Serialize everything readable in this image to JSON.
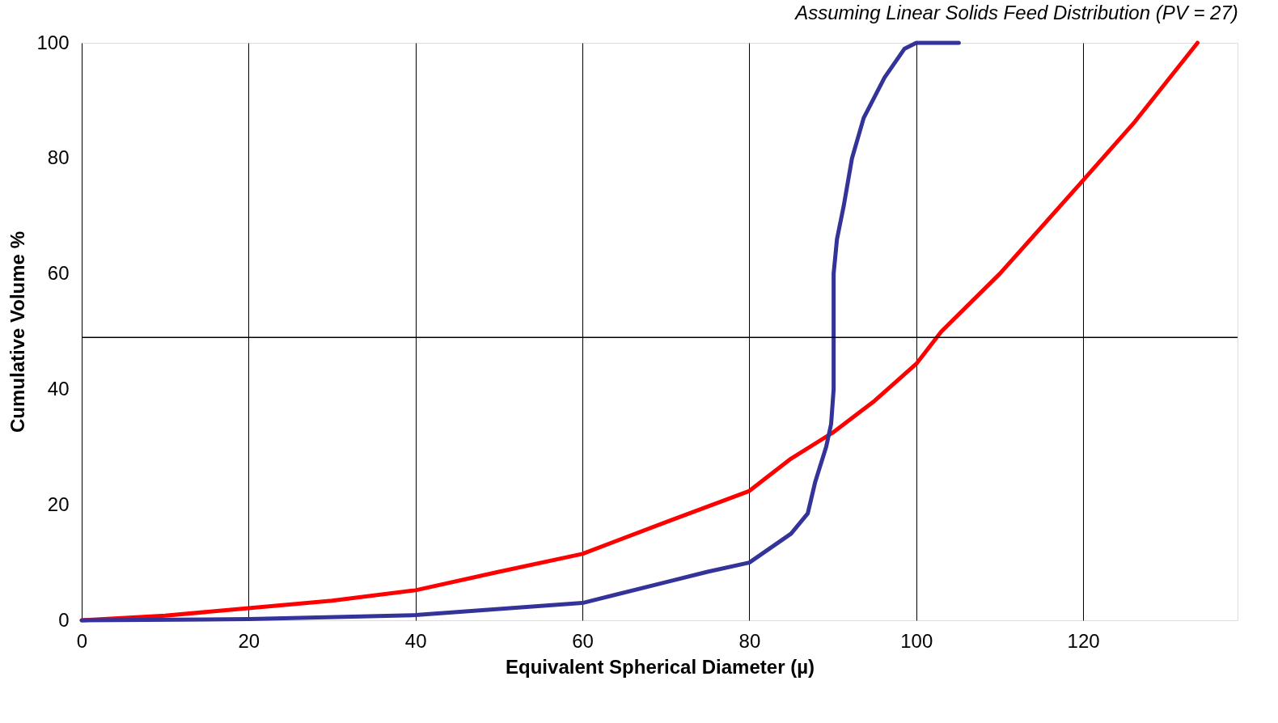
{
  "chart_data": {
    "type": "line",
    "xlabel": "Equivalent Spherical Diameter (µ)",
    "ylabel": "Cumulative Volume %",
    "annotations": [
      "Assuming Linear Solids Feed Distribution (PV = 27)"
    ],
    "series": [
      {
        "color": "#ff0000",
        "x": [
          0,
          10,
          20,
          30,
          40,
          50,
          60,
          70,
          80,
          85,
          90,
          95,
          100,
          103,
          110,
          120,
          126,
          133.7
        ],
        "values": [
          0,
          0.8,
          2.1,
          3.4,
          5.2,
          8.4,
          11.5,
          17,
          22.4,
          28,
          32.5,
          38,
          44.4,
          50,
          60,
          76.2,
          86,
          100
        ]
      },
      {
        "color": "#333399",
        "x": [
          0,
          20,
          40,
          60,
          70,
          75,
          80,
          85,
          87,
          87.9,
          89.2,
          89.8,
          90.1,
          90.1,
          90.5,
          91.3,
          92.3,
          93.7,
          96.2,
          98.6,
          100,
          105.1
        ],
        "values": [
          0,
          0.2,
          0.9,
          3,
          6.6,
          8.4,
          10,
          15,
          18.5,
          24,
          30,
          34,
          40,
          60,
          66,
          71.7,
          80,
          87,
          94,
          99,
          100,
          100
        ]
      }
    ],
    "xlim": [
      0,
      138.5
    ],
    "ylim": [
      0,
      100
    ],
    "xticks": [
      0,
      20,
      40,
      60,
      80,
      100,
      120
    ],
    "yticks": [
      0,
      20,
      40,
      60,
      80,
      100
    ],
    "grid": "x",
    "legend": false,
    "marker": "none",
    "line_style": "solid",
    "ref_lines": [
      {
        "axis": "y",
        "value": 49,
        "color": "#000000"
      }
    ]
  }
}
